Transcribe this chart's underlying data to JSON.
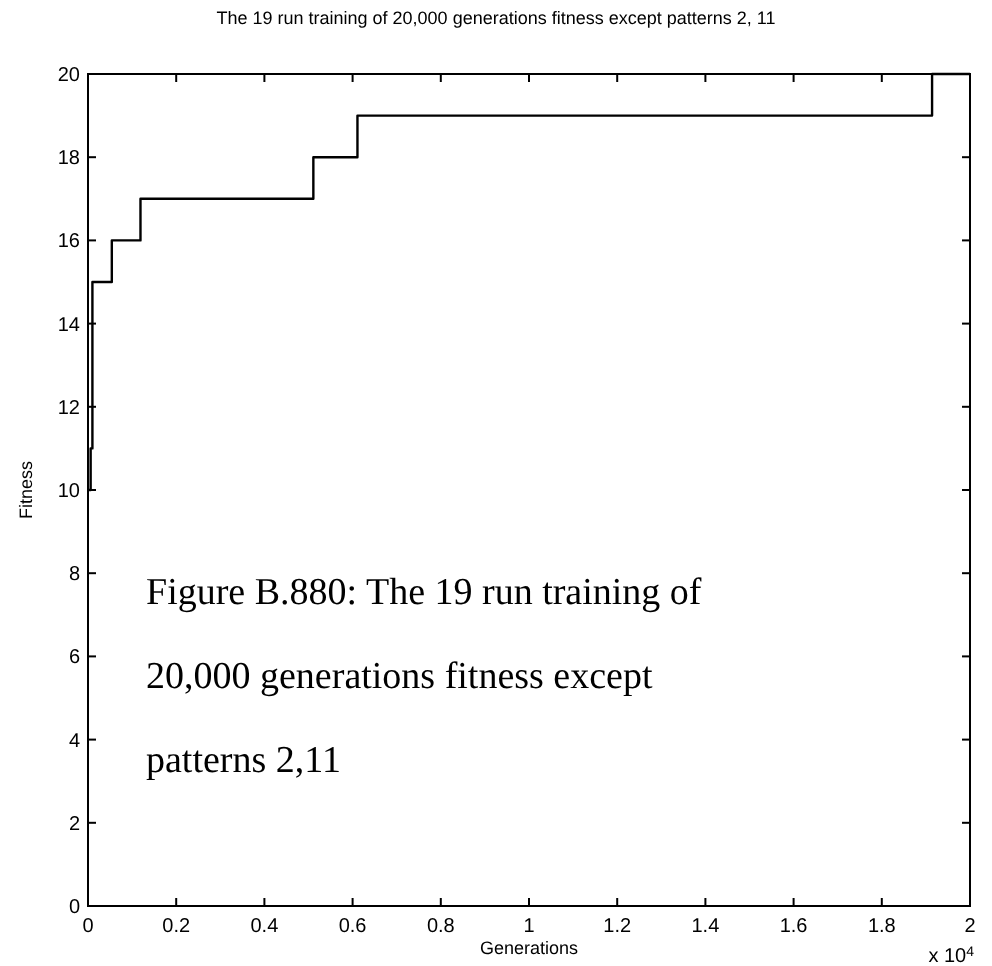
{
  "chart_data": {
    "type": "step",
    "title": "The 19 run training of 20,000 generations fitness except patterns 2, 11",
    "xlabel": "Generations",
    "ylabel": "Fitness",
    "x": [
      0,
      0.006,
      0.01,
      0.054,
      0.119,
      0.511,
      0.611,
      1.914,
      2
    ],
    "series": [
      {
        "color": "#000000",
        "values": [
          10,
          11,
          15,
          16,
          17,
          18,
          19,
          20,
          20
        ]
      }
    ],
    "xlim": [
      0,
      2
    ],
    "xticks": [
      0,
      0.2,
      0.4,
      0.6,
      0.8,
      1,
      1.2,
      1.4,
      1.6,
      1.8,
      2
    ],
    "ylim": [
      0,
      20
    ],
    "yticks": [
      0,
      2,
      4,
      6,
      8,
      10,
      12,
      14,
      16,
      18,
      20
    ],
    "annotations": [
      "x 10$^{4}$",
      "Figure B.880: The 19 run training of 20,000 generations fitness except patterns 2,11"
    ]
  }
}
